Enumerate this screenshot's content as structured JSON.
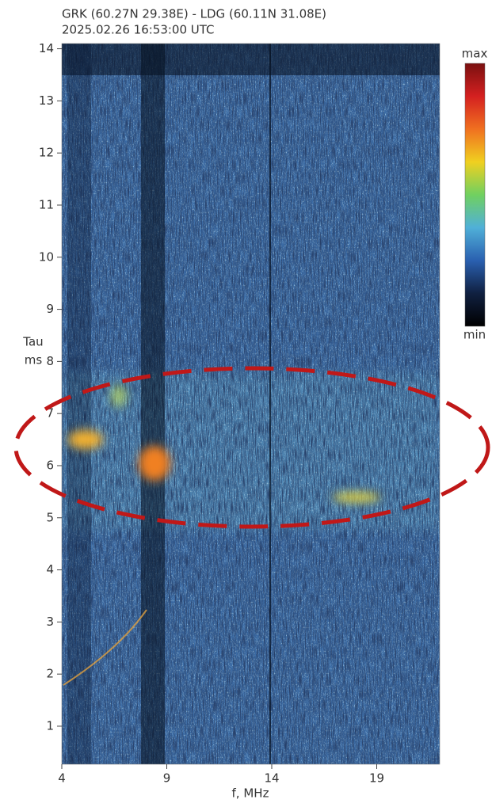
{
  "chart_data": {
    "type": "heatmap",
    "title": [
      "GRK (60.27N 29.38E)  -  LDG (60.11N 31.08E)",
      "2025.02.26   16:53:00  UTC"
    ],
    "x_label": "f, MHz",
    "y_label": [
      "Tau",
      "ms"
    ],
    "xlim": [
      4,
      22
    ],
    "xticks": [
      4,
      9,
      14,
      19
    ],
    "ylim": [
      0.27,
      14.1
    ],
    "yticks": [
      1,
      2,
      3,
      4,
      5,
      6,
      7,
      8,
      9,
      10,
      11,
      12,
      13,
      14
    ],
    "colorbar_labels": [
      "max",
      "min"
    ],
    "colorscale": [
      "#7a1010",
      "#d42020",
      "#f07020",
      "#f0d020",
      "#70d060",
      "#50b0d8",
      "#2a60b0",
      "#102040",
      "#000000"
    ]
  }
}
